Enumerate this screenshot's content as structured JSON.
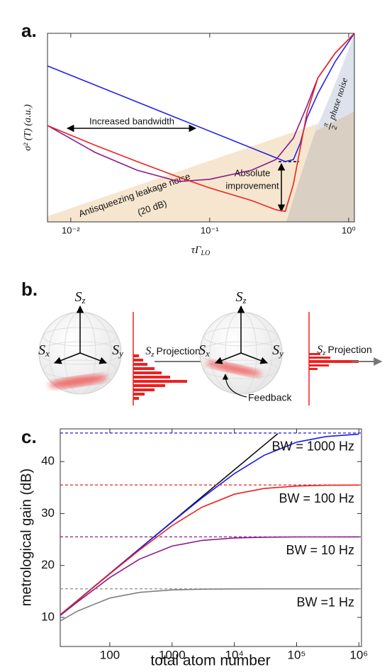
{
  "chart_data": [
    {
      "type": "line",
      "panel_label": "a.",
      "x_label": {
        "text": "τΓ",
        "subscript": "LO"
      },
      "y_label": "σ² (T) (a.u.)",
      "xlim": [
        0.0068,
        1.1
      ],
      "ylim": [
        0,
        1
      ],
      "x_log": true,
      "xticks": [
        {
          "value": 0.01,
          "label": "10⁻²"
        },
        {
          "value": 0.1,
          "label": "10⁻¹"
        },
        {
          "value": 1,
          "label": "10⁰"
        }
      ],
      "annotations": {
        "bandwidth": "Increased bandwidth",
        "improvement": [
          "Absolute",
          "improvement"
        ],
        "leakage": [
          "Antisqueezing leakage noise",
          "(20 dB)"
        ],
        "phase": {
          "numerator": "π",
          "denominator": "2",
          "text": "phase noise"
        }
      },
      "series": [
        {
          "color": "#2222ee",
          "x": [
            0.0068,
            0.35,
            0.4,
            0.45,
            0.5,
            0.6,
            0.8,
            1.1
          ],
          "values": [
            0.827,
            0.32,
            0.33,
            0.42,
            0.55,
            0.68,
            0.85,
            1.0
          ]
        },
        {
          "color": "#8b1a8b",
          "x": [
            0.0068,
            0.015,
            0.03,
            0.06,
            0.1,
            0.2,
            0.3,
            0.4,
            0.5,
            0.6,
            0.8,
            1.1
          ],
          "values": [
            0.511,
            0.368,
            0.274,
            0.214,
            0.226,
            0.274,
            0.331,
            0.444,
            0.613,
            0.763,
            0.895,
            1.0
          ]
        },
        {
          "color": "#ee2222",
          "x": [
            0.0068,
            0.015,
            0.03,
            0.06,
            0.1,
            0.2,
            0.3,
            0.35,
            0.4,
            0.5,
            0.6,
            0.8,
            1.1
          ],
          "values": [
            0.511,
            0.406,
            0.32,
            0.237,
            0.18,
            0.113,
            0.064,
            0.056,
            0.199,
            0.575,
            0.763,
            0.895,
            1.0
          ]
        }
      ]
    },
    {
      "type": "line",
      "panel_label": "c.",
      "x_label": "total atom number",
      "y_label": "metrological gain (dB)",
      "xlim": [
        16,
        1100000
      ],
      "ylim": [
        4.4,
        46.3
      ],
      "x_log": true,
      "xticks": [
        100,
        1000,
        {
          "value": 10000,
          "label": "10⁴"
        },
        {
          "value": 100000,
          "label": "10⁵"
        },
        {
          "value": 1000000,
          "label": "10⁶"
        }
      ],
      "yticks": [
        10,
        20,
        30,
        40
      ],
      "x": [
        16,
        30,
        100,
        300,
        1000,
        3000,
        10000,
        30000,
        100000,
        300000,
        1000000
      ],
      "reference": {
        "color": "#111111",
        "x": [
          16,
          50000
        ],
        "values": [
          10.5,
          45.4
        ]
      },
      "series": [
        {
          "name": "BW = 1000 Hz",
          "color": "#1a1aee",
          "asymptote": 45.5,
          "values": [
            10.5,
            13.19,
            18.45,
            23.2,
            28.37,
            32.98,
            37.67,
            41.21,
            43.73,
            44.83,
            45.29
          ]
        },
        {
          "name": "BW = 100 Hz",
          "color": "#ee2020",
          "asymptote": 35.5,
          "values": [
            10.49,
            13.17,
            18.37,
            22.98,
            27.67,
            31.21,
            33.72,
            34.82,
            35.29,
            35.43,
            35.48
          ]
        },
        {
          "name": "BW = 10 Hz",
          "color": "#8b1a8b",
          "asymptote": 25.5,
          "values": [
            10.36,
            12.95,
            17.67,
            21.21,
            23.72,
            24.82,
            25.29,
            25.43,
            25.48,
            25.49,
            25.5
          ]
        },
        {
          "name": "BW =1 Hz",
          "color": "#808080",
          "asymptote": 15.5,
          "values": [
            9.31,
            11.19,
            13.72,
            14.82,
            15.29,
            15.43,
            15.48,
            15.49,
            15.5,
            15.5,
            15.5
          ]
        }
      ]
    }
  ],
  "diagram": {
    "panel_label": "b.",
    "sphere_1": {
      "z": {
        "symbol": "S",
        "subscript": "z"
      },
      "x": {
        "symbol": "S",
        "subscript": "x"
      },
      "y": {
        "symbol": "S",
        "subscript": "y"
      }
    },
    "projection_1": {
      "symbol": "S",
      "subscript": "z",
      "text": "Projection"
    },
    "sphere_2": {
      "z": {
        "symbol": "S",
        "subscript": "z"
      },
      "x": {
        "symbol": "S",
        "subscript": "x"
      },
      "y": {
        "symbol": "S",
        "subscript": "y"
      }
    },
    "feedback": "Feedback",
    "projection_2": {
      "symbol": "S",
      "subscript": "z",
      "text": "Projection"
    }
  }
}
